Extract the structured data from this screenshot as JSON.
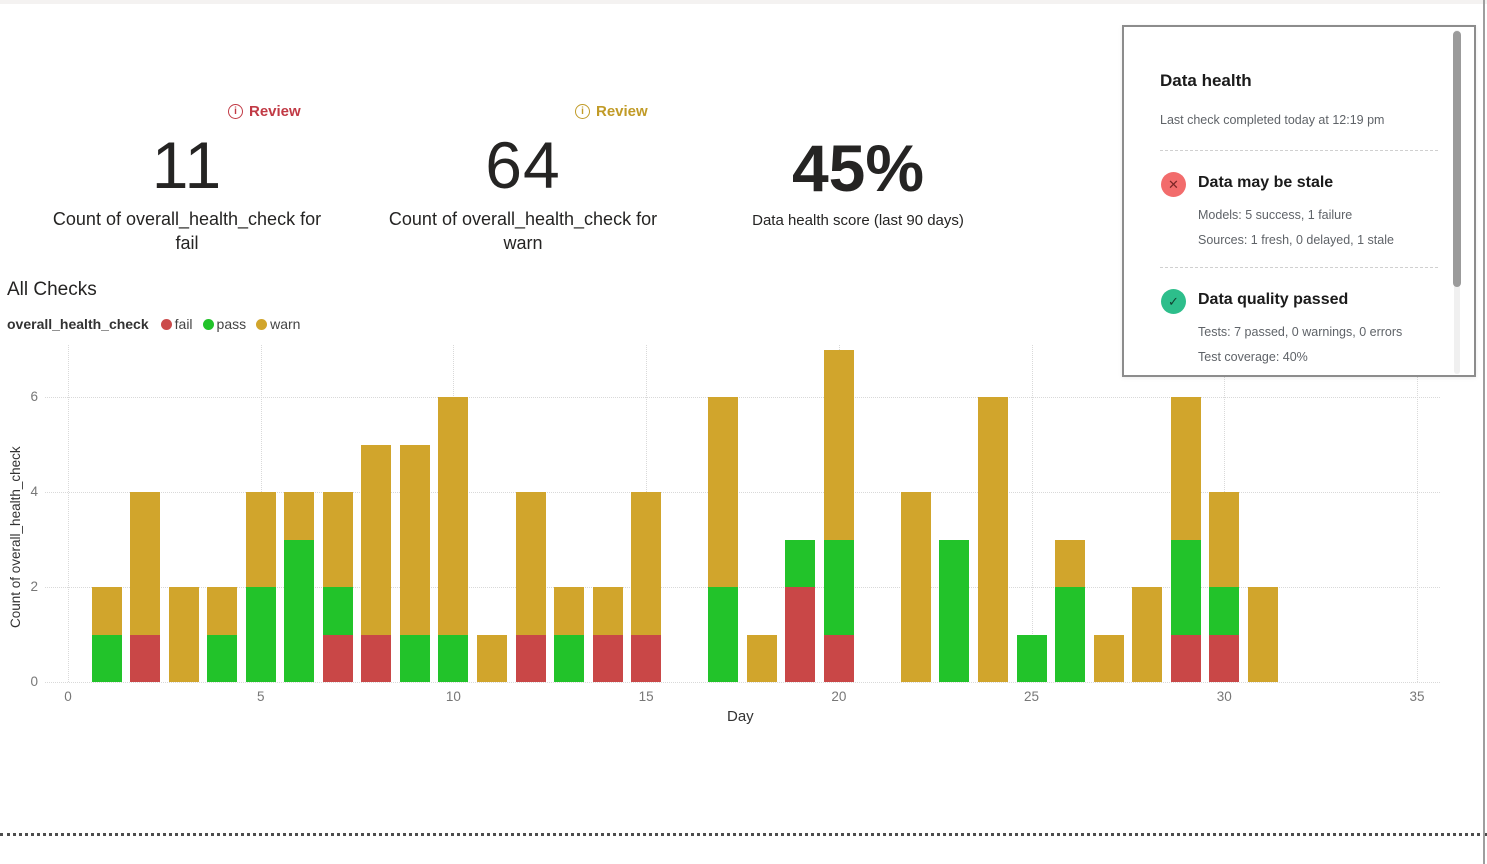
{
  "kpis": [
    {
      "badge": "Review",
      "badge_color": "#c13a45",
      "value": "11",
      "label": "Count of overall_health_check for fail"
    },
    {
      "badge": "Review",
      "badge_color": "#c19b27",
      "value": "64",
      "label": "Count of overall_health_check for warn"
    },
    {
      "value": "45%",
      "label": "Data health score (last 90 days)"
    }
  ],
  "section_title": "All Checks",
  "legend": {
    "title": "overall_health_check",
    "items": [
      {
        "label": "fail",
        "color": "#cb4b4b"
      },
      {
        "label": "pass",
        "color": "#22c32a"
      },
      {
        "label": "warn",
        "color": "#d1a52c"
      }
    ]
  },
  "chart_data": {
    "type": "bar",
    "stacked": true,
    "title": "All Checks",
    "xlabel": "Day",
    "ylabel": "Count of overall_health_check",
    "x": [
      1,
      2,
      3,
      4,
      5,
      6,
      7,
      8,
      9,
      10,
      11,
      12,
      13,
      14,
      15,
      16,
      17,
      18,
      19,
      20,
      21,
      22,
      23,
      24,
      25,
      26,
      27,
      28,
      29,
      30,
      31
    ],
    "series": [
      {
        "name": "fail",
        "color": "#c94747",
        "values": [
          0,
          1,
          0,
          0,
          0,
          0,
          1,
          1,
          0,
          0,
          0,
          1,
          0,
          1,
          1,
          0,
          0,
          0,
          2,
          1,
          0,
          0,
          0,
          0,
          0,
          0,
          0,
          0,
          1,
          1,
          0
        ]
      },
      {
        "name": "pass",
        "color": "#22c32a",
        "values": [
          1,
          0,
          0,
          1,
          2,
          3,
          1,
          0,
          1,
          1,
          0,
          0,
          1,
          0,
          0,
          0,
          2,
          0,
          1,
          2,
          0,
          0,
          3,
          0,
          1,
          2,
          0,
          0,
          2,
          1,
          0
        ]
      },
      {
        "name": "warn",
        "color": "#d1a52c",
        "values": [
          1,
          3,
          2,
          1,
          2,
          1,
          2,
          4,
          4,
          5,
          1,
          3,
          1,
          1,
          3,
          0,
          4,
          1,
          0,
          4,
          0,
          4,
          0,
          6,
          0,
          1,
          1,
          2,
          3,
          2,
          2
        ]
      }
    ],
    "xticks": [
      0,
      5,
      10,
      15,
      20,
      25,
      30,
      35
    ],
    "yticks": [
      0,
      2,
      4,
      6
    ],
    "xlim": [
      0,
      35
    ],
    "ylim": [
      0,
      7.2
    ],
    "grid": "dotted",
    "legend_position": "top-left"
  },
  "health_panel": {
    "title": "Data health",
    "subtitle": "Last check completed today at 12:19 pm",
    "items": [
      {
        "icon": "x-circle-icon",
        "icon_bg": "#f26c6c",
        "icon_glyph": "✕",
        "icon_glyph_color": "#7c2626",
        "heading": "Data may be stale",
        "lines": [
          "Models: 5 success, 1 failure",
          "Sources: 1 fresh, 0 delayed, 1 stale"
        ]
      },
      {
        "icon": "check-circle-icon",
        "icon_bg": "#2dbe8b",
        "icon_glyph": "✓",
        "icon_glyph_color": "#123f30",
        "heading": "Data quality passed",
        "lines": [
          "Tests: 7 passed, 0 warnings, 0 errors",
          "Test coverage: 40%"
        ]
      }
    ]
  }
}
